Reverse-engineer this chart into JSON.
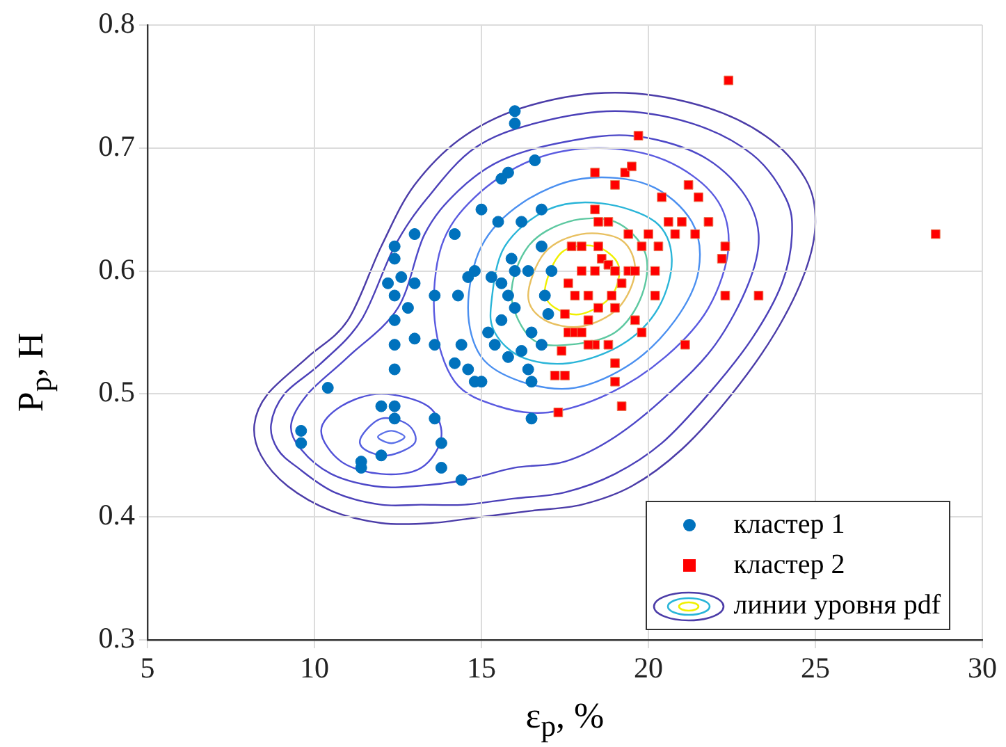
{
  "chart_data": {
    "type": "scatter",
    "xlabel": "ε$_{p}$, %",
    "ylabel": "P$_{p}$, H",
    "xlim": [
      5,
      30
    ],
    "xticks": [
      5,
      10,
      15,
      20,
      25,
      30
    ],
    "ylim": [
      0.3,
      0.8
    ],
    "yticks": [
      0.3,
      0.4,
      0.5,
      0.6,
      0.7,
      0.8
    ],
    "grid": true,
    "legend": "bottom right",
    "annotations": [
      "линии уровня pdf"
    ],
    "series": [
      {
        "type": "scatter",
        "name": "кластер 1",
        "color": "#0072bd",
        "marker": "circle",
        "x": [
          9.6,
          9.6,
          10.4,
          11.4,
          11.4,
          12,
          12,
          12.4,
          12.4,
          12.4,
          12.4,
          12.2,
          12.4,
          12.4,
          12.4,
          12.4,
          12.6,
          12.8,
          13,
          13,
          13,
          13.6,
          13.6,
          13.8,
          13.8,
          13.6,
          14.2,
          14.4,
          14.3,
          14.4,
          14.2,
          14.6,
          14.8,
          15,
          15,
          14.6,
          14.8,
          15.2,
          15.3,
          15.5,
          15.6,
          15.8,
          16,
          16,
          15.6,
          15.8,
          15.4,
          15.6,
          16,
          16,
          16.2,
          16.4,
          16.5,
          16.5,
          16.5,
          16.6,
          16.8,
          16.8,
          16.9,
          17.1,
          16.4,
          16.2,
          15.8,
          16.8,
          15.9,
          17
        ],
        "values": [
          0.47,
          0.46,
          0.505,
          0.445,
          0.44,
          0.49,
          0.45,
          0.49,
          0.48,
          0.62,
          0.61,
          0.59,
          0.58,
          0.56,
          0.54,
          0.52,
          0.595,
          0.57,
          0.63,
          0.59,
          0.545,
          0.58,
          0.54,
          0.46,
          0.44,
          0.48,
          0.63,
          0.43,
          0.58,
          0.54,
          0.525,
          0.52,
          0.51,
          0.51,
          0.65,
          0.595,
          0.6,
          0.55,
          0.595,
          0.64,
          0.675,
          0.68,
          0.73,
          0.72,
          0.59,
          0.58,
          0.54,
          0.56,
          0.6,
          0.57,
          0.64,
          0.6,
          0.55,
          0.48,
          0.51,
          0.69,
          0.65,
          0.62,
          0.58,
          0.6,
          0.52,
          0.535,
          0.53,
          0.54,
          0.61,
          0.565
        ]
      },
      {
        "type": "scatter",
        "name": "кластер 2",
        "color": "#ff0000",
        "marker": "square",
        "x": [
          17.3,
          17.2,
          17.5,
          17.4,
          17.6,
          17.8,
          17.5,
          18,
          18.2,
          17.6,
          17.8,
          18,
          18,
          17.7,
          18.4,
          18.5,
          18.6,
          18.8,
          18.9,
          18.5,
          19,
          18.8,
          19,
          19,
          19.2,
          18.4,
          18.2,
          18.4,
          18.4,
          18.5,
          18.8,
          19,
          19.3,
          19.5,
          19.7,
          19.4,
          19.2,
          19.6,
          19.8,
          19.4,
          19.8,
          19.6,
          20,
          20.2,
          20.3,
          20.4,
          20.6,
          20.8,
          21.2,
          21.5,
          21.4,
          21,
          21.8,
          22.2,
          22.3,
          22.3,
          21.1,
          22.4,
          23.3,
          28.6,
          20.2,
          19,
          18.2
        ],
        "values": [
          0.485,
          0.515,
          0.515,
          0.535,
          0.55,
          0.55,
          0.565,
          0.55,
          0.56,
          0.59,
          0.58,
          0.6,
          0.62,
          0.62,
          0.6,
          0.62,
          0.61,
          0.605,
          0.58,
          0.57,
          0.57,
          0.54,
          0.525,
          0.51,
          0.49,
          0.54,
          0.54,
          0.68,
          0.65,
          0.64,
          0.64,
          0.67,
          0.68,
          0.685,
          0.71,
          0.6,
          0.59,
          0.6,
          0.62,
          0.63,
          0.55,
          0.56,
          0.63,
          0.6,
          0.62,
          0.66,
          0.64,
          0.63,
          0.67,
          0.66,
          0.63,
          0.64,
          0.64,
          0.61,
          0.62,
          0.58,
          0.54,
          0.755,
          0.58,
          0.63,
          0.58,
          0.6,
          0.58
        ]
      }
    ]
  }
}
